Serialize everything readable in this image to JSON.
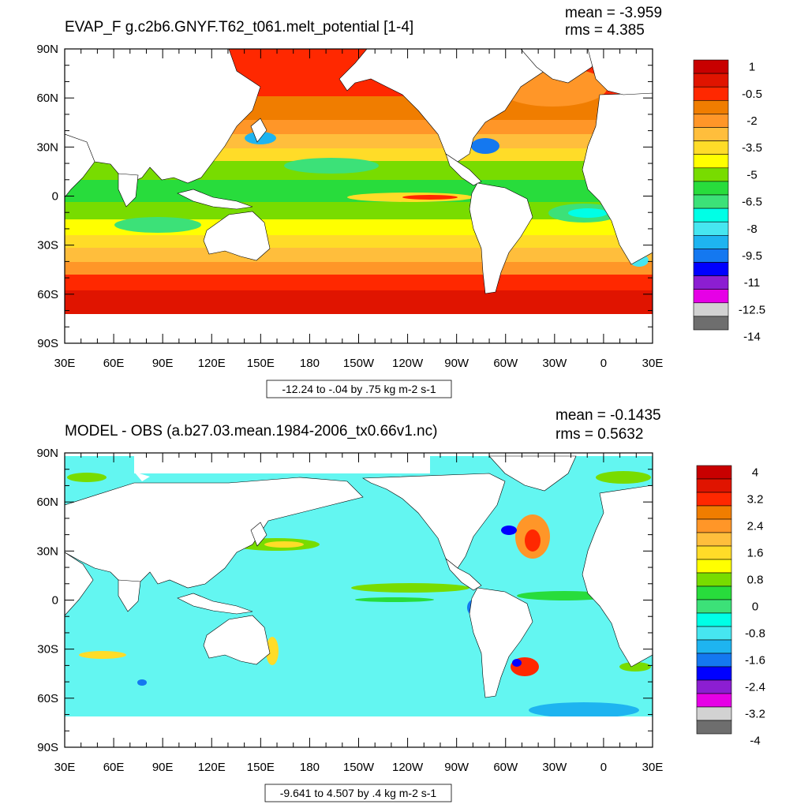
{
  "panels": [
    {
      "id": "top",
      "title": "EVAP_F g.c2b6.GNYF.T62_t061.melt_potential [1-4]",
      "mean_text": "mean = -3.959",
      "rms_text": "rms = 4.385",
      "range_text": "-12.24 to -.04 by .75 kg m-2 s-1",
      "lat_labels": [
        "90N",
        "60N",
        "30N",
        "0",
        "30S",
        "60S",
        "90S"
      ],
      "lon_labels": [
        "30E",
        "60E",
        "90E",
        "120E",
        "150E",
        "180",
        "150W",
        "120W",
        "90W",
        "60W",
        "30W",
        "0",
        "30E"
      ],
      "colorbar": {
        "labels": [
          "1",
          "-0.5",
          "-2",
          "-3.5",
          "-5",
          "-6.5",
          "-8",
          "-9.5",
          "-11",
          "-12.5",
          "-14"
        ],
        "colors": [
          "#c80000",
          "#e01400",
          "#ff2800",
          "#f07d00",
          "#ff9628",
          "#ffbe3c",
          "#ffdc28",
          "#ffff00",
          "#78dc00",
          "#28dc3c",
          "#3ce178",
          "#00ffe6",
          "#46e6f0",
          "#1eb4f0",
          "#1478f0",
          "#0000ff",
          "#8c1ed2",
          "#e600e6",
          "#d2d2d2",
          "#6e6e6e"
        ]
      }
    },
    {
      "id": "bottom",
      "title": "MODEL - OBS (a.b27.03.mean.1984-2006_tx0.66v1.nc)",
      "mean_text": "mean = -0.1435",
      "rms_text": "rms = 0.5632",
      "range_text": "-9.641 to 4.507 by .4 kg m-2 s-1",
      "lat_labels": [
        "90N",
        "60N",
        "30N",
        "0",
        "30S",
        "60S",
        "90S"
      ],
      "lon_labels": [
        "30E",
        "60E",
        "90E",
        "120E",
        "150E",
        "180",
        "150W",
        "120W",
        "90W",
        "60W",
        "30W",
        "0",
        "30E"
      ],
      "colorbar": {
        "labels": [
          "4",
          "3.2",
          "2.4",
          "1.6",
          "0.8",
          "0",
          "-0.8",
          "-1.6",
          "-2.4",
          "-3.2",
          "-4"
        ],
        "colors": [
          "#c80000",
          "#e01400",
          "#ff2800",
          "#f07d00",
          "#ff9628",
          "#ffbe3c",
          "#ffdc28",
          "#ffff00",
          "#78dc00",
          "#28dc3c",
          "#3ce178",
          "#00ffe6",
          "#46e6f0",
          "#1eb4f0",
          "#1478f0",
          "#0000ff",
          "#8c1ed2",
          "#e600e6",
          "#d2d2d2",
          "#6e6e6e"
        ]
      }
    }
  ],
  "colors": {
    "land": "#ffffff",
    "frame": "#000000"
  }
}
